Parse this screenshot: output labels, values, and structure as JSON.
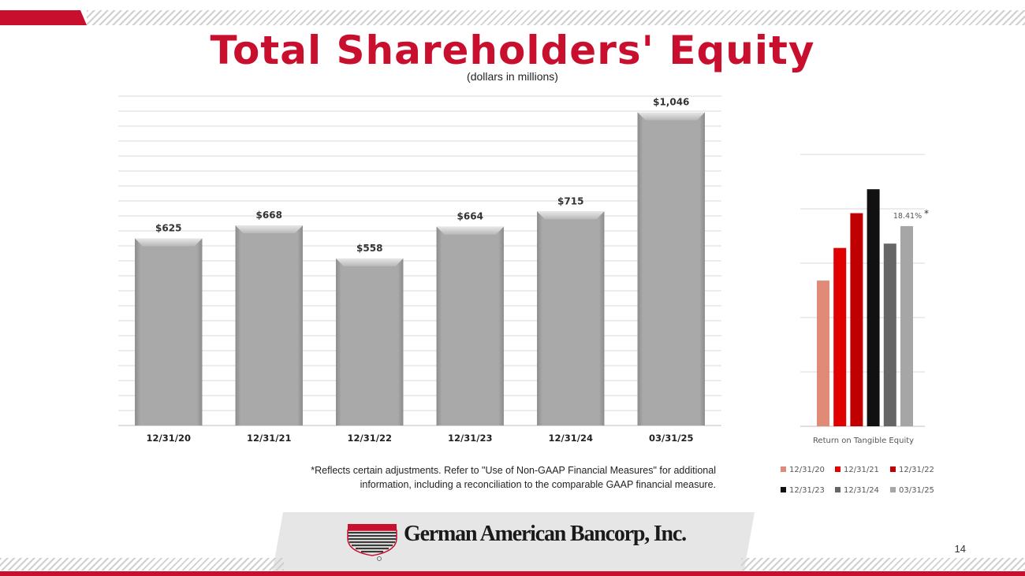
{
  "title": "Total Shareholders' Equity",
  "subtitle": "(dollars in millions)",
  "footnote": {
    "line1": "*Reflects certain adjustments.  Refer to \"Use of Non-GAAP Financial Measures\" for additional",
    "line2": "information, including a reconciliation to the comparable GAAP financial measure."
  },
  "company_name": "German American Bancorp, Inc.",
  "page_number": "14",
  "colors": {
    "brand_red": "#c8102e",
    "bar_gray": "#a6a6a6"
  },
  "chart_data": [
    {
      "type": "bar",
      "categories": [
        "12/31/20",
        "12/31/21",
        "12/31/22",
        "12/31/23",
        "12/31/24",
        "03/31/25"
      ],
      "values": [
        625,
        668,
        558,
        664,
        715,
        1046
      ],
      "data_labels": [
        "$625",
        "$668",
        "$558",
        "$664",
        "$715",
        "$1,046"
      ],
      "ylim": [
        0,
        1100
      ],
      "grid": true,
      "legend": "none"
    },
    {
      "type": "bar",
      "categories": [
        "Return on Tangible Equity"
      ],
      "xlabel": "Return on Tangible Equity",
      "series": [
        {
          "name": "12/31/20",
          "values": [
            13.4
          ],
          "color": "#e08a78"
        },
        {
          "name": "12/31/21",
          "values": [
            16.4
          ],
          "color": "#e00000"
        },
        {
          "name": "12/31/22",
          "values": [
            19.6
          ],
          "color": "#c00000"
        },
        {
          "name": "12/31/23",
          "values": [
            21.8
          ],
          "color": "#111111"
        },
        {
          "name": "12/31/24",
          "values": [
            16.8
          ],
          "color": "#666666"
        },
        {
          "name": "03/31/25",
          "values": [
            18.41
          ],
          "color": "#a6a6a6"
        }
      ],
      "annotation": "18.41%",
      "annotation_marker": "*",
      "ylim": [
        0,
        25
      ],
      "grid": true,
      "legend": "bottom"
    }
  ]
}
